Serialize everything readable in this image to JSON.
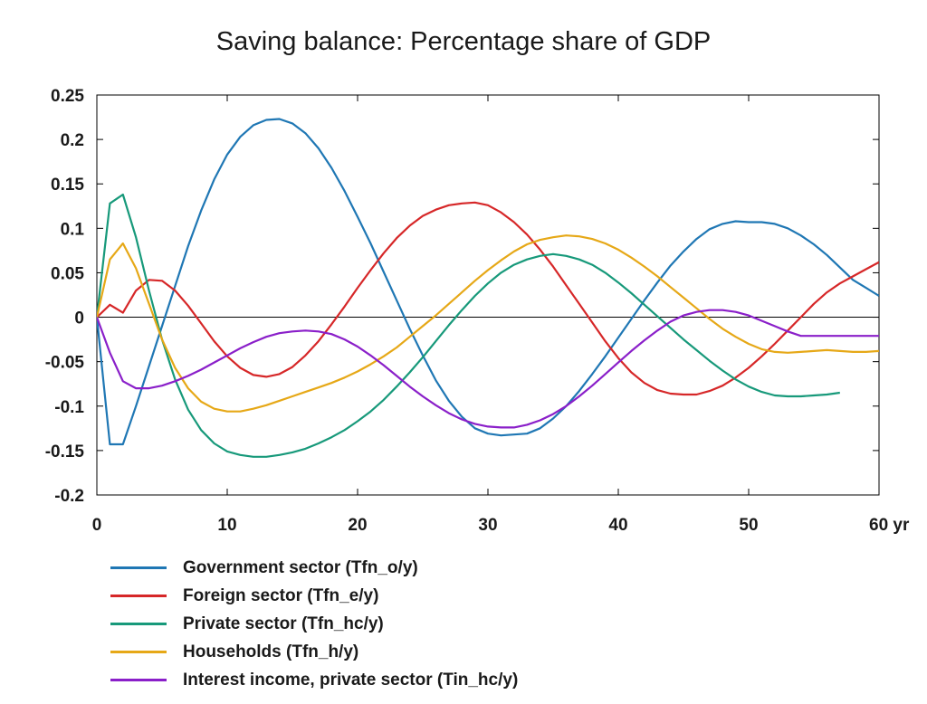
{
  "chart_data": {
    "type": "line",
    "title": "Saving balance: Percentage share of GDP",
    "xlabel": "",
    "ylabel": "",
    "x_unit_label": "yr",
    "xlim": [
      0,
      60
    ],
    "ylim": [
      -0.2,
      0.25
    ],
    "x_ticks": [
      0,
      10,
      20,
      30,
      40,
      50,
      60
    ],
    "x_tick_labels": [
      "0",
      "10",
      "20",
      "30",
      "40",
      "50",
      "60 yr"
    ],
    "y_ticks": [
      -0.2,
      -0.15,
      -0.1,
      -0.05,
      0,
      0.05,
      0.1,
      0.15,
      0.2,
      0.25
    ],
    "y_tick_labels": [
      "-0.2",
      "-0.15",
      "-0.1",
      "-0.05",
      "0",
      "0.05",
      "0.1",
      "0.15",
      "0.2",
      "0.25"
    ],
    "grid": false,
    "zero_line": true,
    "legend_position": "bottom-left",
    "series": [
      {
        "name": "Government sector (Tfn_o/y)",
        "color": "#1f77b4",
        "points": [
          [
            0,
            0
          ],
          [
            1,
            -0.143
          ],
          [
            2,
            -0.143
          ],
          [
            3,
            -0.1
          ],
          [
            4,
            -0.055
          ],
          [
            5,
            -0.01
          ],
          [
            6,
            0.035
          ],
          [
            7,
            0.08
          ],
          [
            8,
            0.12
          ],
          [
            9,
            0.155
          ],
          [
            10,
            0.183
          ],
          [
            11,
            0.203
          ],
          [
            12,
            0.216
          ],
          [
            13,
            0.222
          ],
          [
            14,
            0.223
          ],
          [
            15,
            0.218
          ],
          [
            16,
            0.207
          ],
          [
            17,
            0.19
          ],
          [
            18,
            0.168
          ],
          [
            19,
            0.142
          ],
          [
            20,
            0.113
          ],
          [
            21,
            0.083
          ],
          [
            22,
            0.051
          ],
          [
            23,
            0.019
          ],
          [
            24,
            -0.013
          ],
          [
            25,
            -0.043
          ],
          [
            26,
            -0.071
          ],
          [
            27,
            -0.094
          ],
          [
            28,
            -0.112
          ],
          [
            29,
            -0.125
          ],
          [
            30,
            -0.131
          ],
          [
            31,
            -0.133
          ],
          [
            32,
            -0.132
          ],
          [
            33,
            -0.131
          ],
          [
            34,
            -0.125
          ],
          [
            35,
            -0.114
          ],
          [
            36,
            -0.1
          ],
          [
            37,
            -0.083
          ],
          [
            38,
            -0.064
          ],
          [
            39,
            -0.044
          ],
          [
            40,
            -0.023
          ],
          [
            41,
            -0.002
          ],
          [
            42,
            0.019
          ],
          [
            43,
            0.039
          ],
          [
            44,
            0.058
          ],
          [
            45,
            0.074
          ],
          [
            46,
            0.088
          ],
          [
            47,
            0.099
          ],
          [
            48,
            0.105
          ],
          [
            49,
            0.108
          ],
          [
            50,
            0.107
          ],
          [
            51,
            0.107
          ],
          [
            52,
            0.105
          ],
          [
            53,
            0.1
          ],
          [
            54,
            0.092
          ],
          [
            55,
            0.082
          ],
          [
            56,
            0.07
          ],
          [
            57,
            0.056
          ],
          [
            58,
            0.042
          ],
          [
            59,
            0.033
          ],
          [
            60,
            0.024
          ]
        ]
      },
      {
        "name": "Foreign sector (Tfn_e/y)",
        "color": "#d62728",
        "points": [
          [
            0,
            0
          ],
          [
            1,
            0.014
          ],
          [
            2,
            0.005
          ],
          [
            3,
            0.03
          ],
          [
            4,
            0.042
          ],
          [
            5,
            0.041
          ],
          [
            6,
            0.03
          ],
          [
            7,
            0.013
          ],
          [
            8,
            -0.007
          ],
          [
            9,
            -0.027
          ],
          [
            10,
            -0.044
          ],
          [
            11,
            -0.057
          ],
          [
            12,
            -0.065
          ],
          [
            13,
            -0.067
          ],
          [
            14,
            -0.064
          ],
          [
            15,
            -0.056
          ],
          [
            16,
            -0.043
          ],
          [
            17,
            -0.027
          ],
          [
            18,
            -0.008
          ],
          [
            19,
            0.012
          ],
          [
            20,
            0.033
          ],
          [
            21,
            0.053
          ],
          [
            22,
            0.072
          ],
          [
            23,
            0.089
          ],
          [
            24,
            0.103
          ],
          [
            25,
            0.114
          ],
          [
            26,
            0.121
          ],
          [
            27,
            0.126
          ],
          [
            28,
            0.128
          ],
          [
            29,
            0.129
          ],
          [
            30,
            0.126
          ],
          [
            31,
            0.118
          ],
          [
            32,
            0.107
          ],
          [
            33,
            0.093
          ],
          [
            34,
            0.076
          ],
          [
            35,
            0.057
          ],
          [
            36,
            0.036
          ],
          [
            37,
            0.015
          ],
          [
            38,
            -0.006
          ],
          [
            39,
            -0.027
          ],
          [
            40,
            -0.046
          ],
          [
            41,
            -0.062
          ],
          [
            42,
            -0.074
          ],
          [
            43,
            -0.082
          ],
          [
            44,
            -0.086
          ],
          [
            45,
            -0.087
          ],
          [
            46,
            -0.087
          ],
          [
            47,
            -0.083
          ],
          [
            48,
            -0.077
          ],
          [
            49,
            -0.068
          ],
          [
            50,
            -0.057
          ],
          [
            51,
            -0.044
          ],
          [
            52,
            -0.03
          ],
          [
            53,
            -0.015
          ],
          [
            54,
            0
          ],
          [
            55,
            0.015
          ],
          [
            56,
            0.028
          ],
          [
            57,
            0.038
          ],
          [
            58,
            0.046
          ],
          [
            59,
            0.054
          ],
          [
            60,
            0.062
          ]
        ]
      },
      {
        "name": "Private sector (Tfn_hc/y)",
        "color": "#17997a",
        "points": [
          [
            0,
            0
          ],
          [
            1,
            0.128
          ],
          [
            2,
            0.138
          ],
          [
            3,
            0.09
          ],
          [
            4,
            0.03
          ],
          [
            5,
            -0.025
          ],
          [
            6,
            -0.07
          ],
          [
            7,
            -0.104
          ],
          [
            8,
            -0.127
          ],
          [
            9,
            -0.142
          ],
          [
            10,
            -0.151
          ],
          [
            11,
            -0.155
          ],
          [
            12,
            -0.157
          ],
          [
            13,
            -0.157
          ],
          [
            14,
            -0.155
          ],
          [
            15,
            -0.152
          ],
          [
            16,
            -0.148
          ],
          [
            17,
            -0.142
          ],
          [
            18,
            -0.135
          ],
          [
            19,
            -0.127
          ],
          [
            20,
            -0.117
          ],
          [
            21,
            -0.106
          ],
          [
            22,
            -0.093
          ],
          [
            23,
            -0.078
          ],
          [
            24,
            -0.062
          ],
          [
            25,
            -0.045
          ],
          [
            26,
            -0.027
          ],
          [
            27,
            -0.009
          ],
          [
            28,
            0.008
          ],
          [
            29,
            0.024
          ],
          [
            30,
            0.038
          ],
          [
            31,
            0.05
          ],
          [
            32,
            0.059
          ],
          [
            33,
            0.065
          ],
          [
            34,
            0.069
          ],
          [
            35,
            0.071
          ],
          [
            36,
            0.069
          ],
          [
            37,
            0.065
          ],
          [
            38,
            0.059
          ],
          [
            39,
            0.05
          ],
          [
            40,
            0.039
          ],
          [
            41,
            0.027
          ],
          [
            42,
            0.014
          ],
          [
            43,
            0.001
          ],
          [
            44,
            -0.012
          ],
          [
            45,
            -0.025
          ],
          [
            46,
            -0.037
          ],
          [
            47,
            -0.049
          ],
          [
            48,
            -0.06
          ],
          [
            49,
            -0.07
          ],
          [
            50,
            -0.078
          ],
          [
            51,
            -0.084
          ],
          [
            52,
            -0.088
          ],
          [
            53,
            -0.089
          ],
          [
            54,
            -0.089
          ],
          [
            55,
            -0.088
          ],
          [
            56,
            -0.087
          ],
          [
            57,
            -0.085
          ]
        ]
      },
      {
        "name": "Households (Tfn_h/y)",
        "color": "#e6a817",
        "points": [
          [
            0,
            0
          ],
          [
            1,
            0.065
          ],
          [
            2,
            0.083
          ],
          [
            3,
            0.055
          ],
          [
            4,
            0.015
          ],
          [
            5,
            -0.025
          ],
          [
            6,
            -0.057
          ],
          [
            7,
            -0.08
          ],
          [
            8,
            -0.095
          ],
          [
            9,
            -0.103
          ],
          [
            10,
            -0.106
          ],
          [
            11,
            -0.106
          ],
          [
            12,
            -0.103
          ],
          [
            13,
            -0.099
          ],
          [
            14,
            -0.094
          ],
          [
            15,
            -0.089
          ],
          [
            16,
            -0.084
          ],
          [
            17,
            -0.079
          ],
          [
            18,
            -0.074
          ],
          [
            19,
            -0.068
          ],
          [
            20,
            -0.061
          ],
          [
            21,
            -0.053
          ],
          [
            22,
            -0.044
          ],
          [
            23,
            -0.034
          ],
          [
            24,
            -0.022
          ],
          [
            25,
            -0.01
          ],
          [
            26,
            0.002
          ],
          [
            27,
            0.015
          ],
          [
            28,
            0.028
          ],
          [
            29,
            0.041
          ],
          [
            30,
            0.053
          ],
          [
            31,
            0.064
          ],
          [
            32,
            0.074
          ],
          [
            33,
            0.082
          ],
          [
            34,
            0.087
          ],
          [
            35,
            0.09
          ],
          [
            36,
            0.092
          ],
          [
            37,
            0.091
          ],
          [
            38,
            0.088
          ],
          [
            39,
            0.083
          ],
          [
            40,
            0.076
          ],
          [
            41,
            0.067
          ],
          [
            42,
            0.057
          ],
          [
            43,
            0.046
          ],
          [
            44,
            0.034
          ],
          [
            45,
            0.022
          ],
          [
            46,
            0.01
          ],
          [
            47,
            -0.002
          ],
          [
            48,
            -0.013
          ],
          [
            49,
            -0.022
          ],
          [
            50,
            -0.03
          ],
          [
            51,
            -0.036
          ],
          [
            52,
            -0.039
          ],
          [
            53,
            -0.04
          ],
          [
            54,
            -0.039
          ],
          [
            55,
            -0.038
          ],
          [
            56,
            -0.037
          ],
          [
            57,
            -0.038
          ],
          [
            58,
            -0.039
          ],
          [
            59,
            -0.039
          ],
          [
            60,
            -0.038
          ]
        ]
      },
      {
        "name": "Interest income, private sector (Tin_hc/y)",
        "color": "#8a1fc9",
        "points": [
          [
            0,
            0
          ],
          [
            1,
            -0.04
          ],
          [
            2,
            -0.072
          ],
          [
            3,
            -0.08
          ],
          [
            4,
            -0.08
          ],
          [
            5,
            -0.077
          ],
          [
            6,
            -0.072
          ],
          [
            7,
            -0.066
          ],
          [
            8,
            -0.059
          ],
          [
            9,
            -0.051
          ],
          [
            10,
            -0.043
          ],
          [
            11,
            -0.035
          ],
          [
            12,
            -0.028
          ],
          [
            13,
            -0.022
          ],
          [
            14,
            -0.018
          ],
          [
            15,
            -0.016
          ],
          [
            16,
            -0.015
          ],
          [
            17,
            -0.016
          ],
          [
            18,
            -0.019
          ],
          [
            19,
            -0.025
          ],
          [
            20,
            -0.033
          ],
          [
            21,
            -0.043
          ],
          [
            22,
            -0.054
          ],
          [
            23,
            -0.066
          ],
          [
            24,
            -0.078
          ],
          [
            25,
            -0.089
          ],
          [
            26,
            -0.099
          ],
          [
            27,
            -0.108
          ],
          [
            28,
            -0.115
          ],
          [
            29,
            -0.12
          ],
          [
            30,
            -0.123
          ],
          [
            31,
            -0.124
          ],
          [
            32,
            -0.124
          ],
          [
            33,
            -0.121
          ],
          [
            34,
            -0.116
          ],
          [
            35,
            -0.109
          ],
          [
            36,
            -0.1
          ],
          [
            37,
            -0.089
          ],
          [
            38,
            -0.077
          ],
          [
            39,
            -0.064
          ],
          [
            40,
            -0.051
          ],
          [
            41,
            -0.038
          ],
          [
            42,
            -0.026
          ],
          [
            43,
            -0.015
          ],
          [
            44,
            -0.005
          ],
          [
            45,
            0.002
          ],
          [
            46,
            0.006
          ],
          [
            47,
            0.008
          ],
          [
            48,
            0.008
          ],
          [
            49,
            0.006
          ],
          [
            50,
            0.002
          ],
          [
            51,
            -0.004
          ],
          [
            52,
            -0.01
          ],
          [
            53,
            -0.016
          ],
          [
            54,
            -0.021
          ],
          [
            60,
            -0.021
          ]
        ]
      }
    ]
  }
}
